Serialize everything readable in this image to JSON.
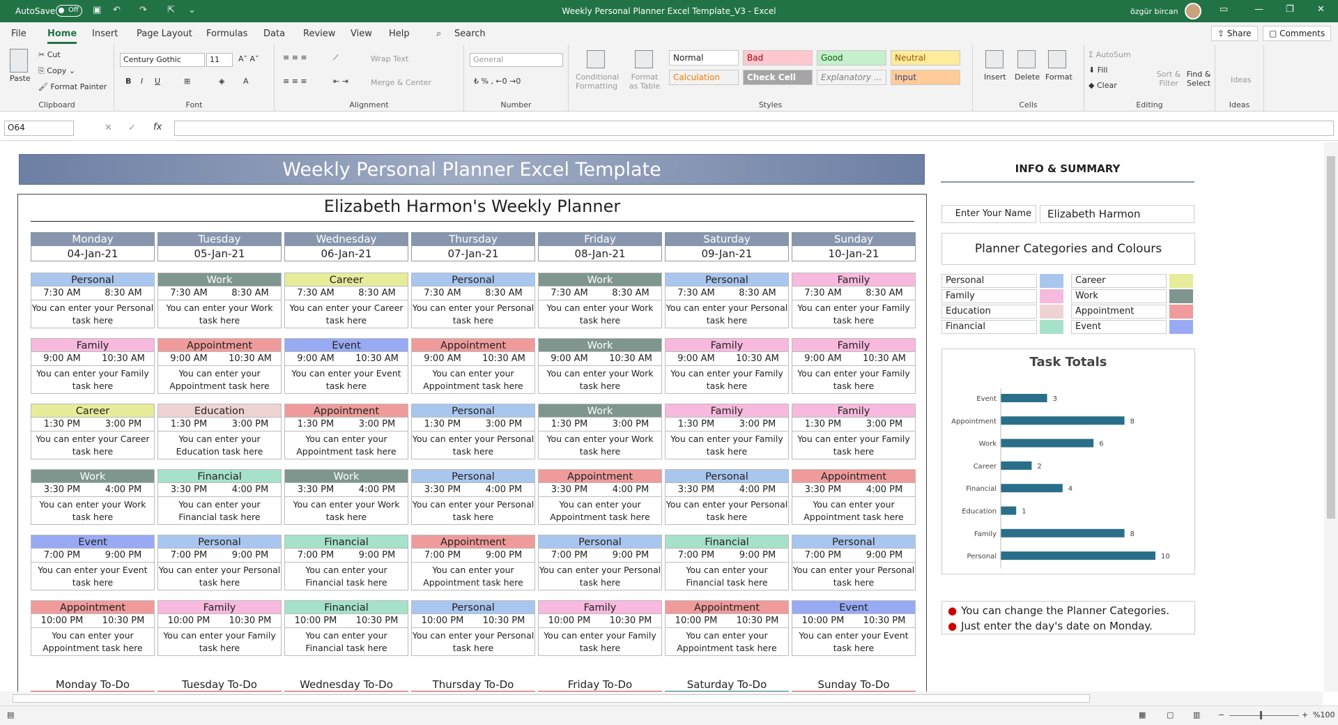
{
  "titlebar": {
    "autosave": "AutoSave",
    "toggle": "Off",
    "doc_title": "Weekly Personal Planner Excel Template_V3  -  Excel",
    "user": "özgür bircan"
  },
  "tabs": [
    "File",
    "Home",
    "Insert",
    "Page Layout",
    "Formulas",
    "Data",
    "Review",
    "View",
    "Help"
  ],
  "search": "Search",
  "share": "Share",
  "comments": "Comments",
  "ribbon": {
    "clipboard": {
      "paste": "Paste",
      "cut": "Cut",
      "copy": "Copy",
      "painter": "Format Painter",
      "label": "Clipboard"
    },
    "font": {
      "family": "Century Gothic",
      "size": "11",
      "label": "Font"
    },
    "alignment": {
      "wrap": "Wrap Text",
      "merge": "Merge & Center",
      "label": "Alignment"
    },
    "number": {
      "format": "General",
      "label": "Number"
    },
    "styles": {
      "cond": "Conditional Formatting",
      "table": "Format as Table",
      "normal": "Normal",
      "bad": "Bad",
      "good": "Good",
      "neutral": "Neutral",
      "calc": "Calculation",
      "check": "Check Cell",
      "expl": "Explanatory ...",
      "input": "Input",
      "label": "Styles"
    },
    "cells": {
      "insert": "Insert",
      "delete": "Delete",
      "format": "Format",
      "label": "Cells"
    },
    "editing": {
      "autosum": "AutoSum",
      "fill": "Fill",
      "clear": "Clear",
      "sort": "Sort & Filter",
      "find": "Find & Select",
      "label": "Editing"
    },
    "ideas": {
      "ideas": "Ideas",
      "label": "Ideas"
    }
  },
  "namebox": "O64",
  "banner": "Weekly Personal Planner Excel Template",
  "planner_title": "Elizabeth Harmon's Weekly Planner",
  "days": [
    {
      "name": "Monday",
      "date": "04-Jan-21"
    },
    {
      "name": "Tuesday",
      "date": "05-Jan-21"
    },
    {
      "name": "Wednesday",
      "date": "06-Jan-21"
    },
    {
      "name": "Thursday",
      "date": "07-Jan-21"
    },
    {
      "name": "Friday",
      "date": "08-Jan-21"
    },
    {
      "name": "Saturday",
      "date": "09-Jan-21"
    },
    {
      "name": "Sunday",
      "date": "10-Jan-21"
    }
  ],
  "slots": [
    {
      "start": "7:30 AM",
      "end": "8:30 AM",
      "cats": [
        "Personal",
        "Work",
        "Career",
        "Personal",
        "Work",
        "Personal",
        "Family"
      ]
    },
    {
      "start": "9:00 AM",
      "end": "10:30 AM",
      "cats": [
        "Family",
        "Appointment",
        "Event",
        "Appointment",
        "Work",
        "Family",
        "Family"
      ]
    },
    {
      "start": "1:30 PM",
      "end": "3:00 PM",
      "cats": [
        "Career",
        "Education",
        "Appointment",
        "Personal",
        "Work",
        "Family",
        "Family"
      ]
    },
    {
      "start": "3:30 PM",
      "end": "4:00 PM",
      "cats": [
        "Work",
        "Financial",
        "Work",
        "Personal",
        "Appointment",
        "Personal",
        "Appointment"
      ]
    },
    {
      "start": "7:00 PM",
      "end": "9:00 PM",
      "cats": [
        "Event",
        "Personal",
        "Financial",
        "Appointment",
        "Personal",
        "Financial",
        "Personal"
      ]
    },
    {
      "start": "10:00 PM",
      "end": "10:30 PM",
      "cats": [
        "Appointment",
        "Family",
        "Financial",
        "Personal",
        "Family",
        "Appointment",
        "Event"
      ]
    }
  ],
  "desc_prefix": "You can enter your",
  "desc_suffix": "task here",
  "todos": [
    "Monday To-Do",
    "Tuesday To-Do",
    "Wednesday To-Do",
    "Thursday To-Do",
    "Friday To-Do",
    "Saturday To-Do",
    "Sunday To-Do"
  ],
  "info": {
    "title": "INFO & SUMMARY",
    "name_label": "Enter Your Name",
    "name_value": "Elizabeth Harmon",
    "cat_title": "Planner Categories and Colours"
  },
  "categories": [
    {
      "name": "Personal",
      "color": "#a9c6ee"
    },
    {
      "name": "Career",
      "color": "#e6ec9a"
    },
    {
      "name": "Family",
      "color": "#f7b9dd"
    },
    {
      "name": "Work",
      "color": "#7f968f"
    },
    {
      "name": "Education",
      "color": "#efd3d3"
    },
    {
      "name": "Appointment",
      "color": "#ef9b9b"
    },
    {
      "name": "Financial",
      "color": "#a6e1c9"
    },
    {
      "name": "Event",
      "color": "#98aaf3"
    }
  ],
  "chart_data": {
    "type": "bar",
    "orientation": "horizontal",
    "title": "Task Totals",
    "categories": [
      "Event",
      "Appointment",
      "Work",
      "Career",
      "Financial",
      "Education",
      "Family",
      "Personal"
    ],
    "values": [
      3,
      8,
      6,
      2,
      4,
      1,
      8,
      10
    ],
    "color": "#2a6f8a",
    "data_labels": true
  },
  "notes": [
    "You can change the Planner Categories.",
    "Just enter the day's date on Monday."
  ],
  "status": {
    "zoom": "%100"
  }
}
